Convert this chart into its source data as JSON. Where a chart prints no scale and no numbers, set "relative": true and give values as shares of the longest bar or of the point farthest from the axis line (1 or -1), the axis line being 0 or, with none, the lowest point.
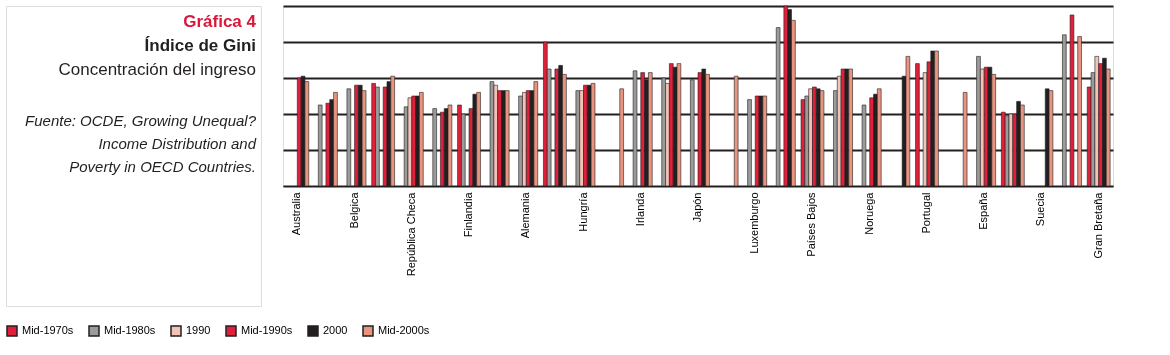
{
  "chart_data": {
    "type": "bar",
    "title": "Gráfica 4",
    "subtitle": "Índice de Gini",
    "annotations": [
      "Concentración del ingreso",
      "Fuente: OCDE, Growing Unequal? Income Distribution and Poverty in OECD Countries."
    ],
    "relative": true,
    "grid": "y",
    "legend": "bottom",
    "categories": [
      "Australia",
      null,
      "Belgica",
      null,
      "República Checa",
      null,
      "Finlandia",
      null,
      "Alemania",
      null,
      "Hungría",
      null,
      "Irlanda",
      null,
      "Japón",
      null,
      "Luxemburgo",
      null,
      "Países Bajos",
      null,
      "Noruega",
      null,
      "Portugal",
      null,
      "España",
      null,
      "Suecia",
      null,
      "Gran Bretaña"
    ],
    "series": [
      {
        "name": "Mid-1970s",
        "color": "#e0203a",
        "values": [
          null,
          null,
          null,
          0.57,
          null,
          null,
          0.45,
          null,
          null,
          0.8,
          null,
          null,
          null,
          null,
          null,
          null,
          null,
          null,
          0.48,
          null,
          null,
          null,
          0.68,
          null,
          null,
          0.41,
          null,
          null,
          0.55
        ]
      },
      {
        "name": "Mid-1980s",
        "color": "#9b9b9b",
        "values": [
          null,
          0.45,
          0.54,
          0.55,
          0.44,
          0.43,
          0.4,
          0.58,
          0.5,
          0.65,
          0.53,
          null,
          0.64,
          0.6,
          0.59,
          null,
          0.48,
          0.88,
          0.5,
          0.53,
          0.45,
          null,
          null,
          null,
          0.72,
          0.39,
          null,
          0.84,
          0.63
        ]
      },
      {
        "name": "1990",
        "color": "#f2c4b8",
        "values": [
          null,
          null,
          null,
          null,
          0.49,
          null,
          null,
          0.56,
          0.52,
          null,
          0.53,
          null,
          null,
          0.57,
          null,
          null,
          null,
          null,
          0.54,
          0.61,
          null,
          null,
          0.63,
          null,
          0.65,
          0.4,
          null,
          null,
          0.72
        ]
      },
      {
        "name": "Mid-1990s",
        "color": "#e0203a",
        "values": [
          0.6,
          0.46,
          0.56,
          0.55,
          0.5,
          0.41,
          0.43,
          0.53,
          0.53,
          0.65,
          0.56,
          null,
          0.63,
          0.68,
          0.63,
          null,
          0.5,
          1.0,
          0.55,
          0.65,
          0.49,
          null,
          0.69,
          null,
          0.66,
          0.4,
          null,
          0.95,
          0.68
        ]
      },
      {
        "name": "2000",
        "color": "#231f20",
        "values": [
          0.61,
          0.48,
          0.56,
          0.58,
          0.5,
          0.43,
          0.51,
          0.53,
          0.53,
          0.67,
          0.56,
          null,
          0.59,
          0.66,
          0.65,
          null,
          0.5,
          0.98,
          0.54,
          0.65,
          0.51,
          0.61,
          0.75,
          null,
          0.66,
          0.47,
          0.54,
          null,
          0.71
        ]
      },
      {
        "name": "Mid-2000s",
        "color": "#e8957f",
        "values": [
          0.58,
          0.52,
          0.53,
          0.61,
          0.52,
          0.45,
          0.52,
          0.53,
          0.58,
          0.62,
          0.57,
          0.54,
          0.63,
          0.68,
          0.62,
          0.61,
          0.5,
          0.92,
          0.53,
          0.65,
          0.54,
          0.72,
          0.75,
          0.52,
          0.62,
          0.45,
          0.53,
          0.83,
          0.65
        ]
      }
    ]
  }
}
